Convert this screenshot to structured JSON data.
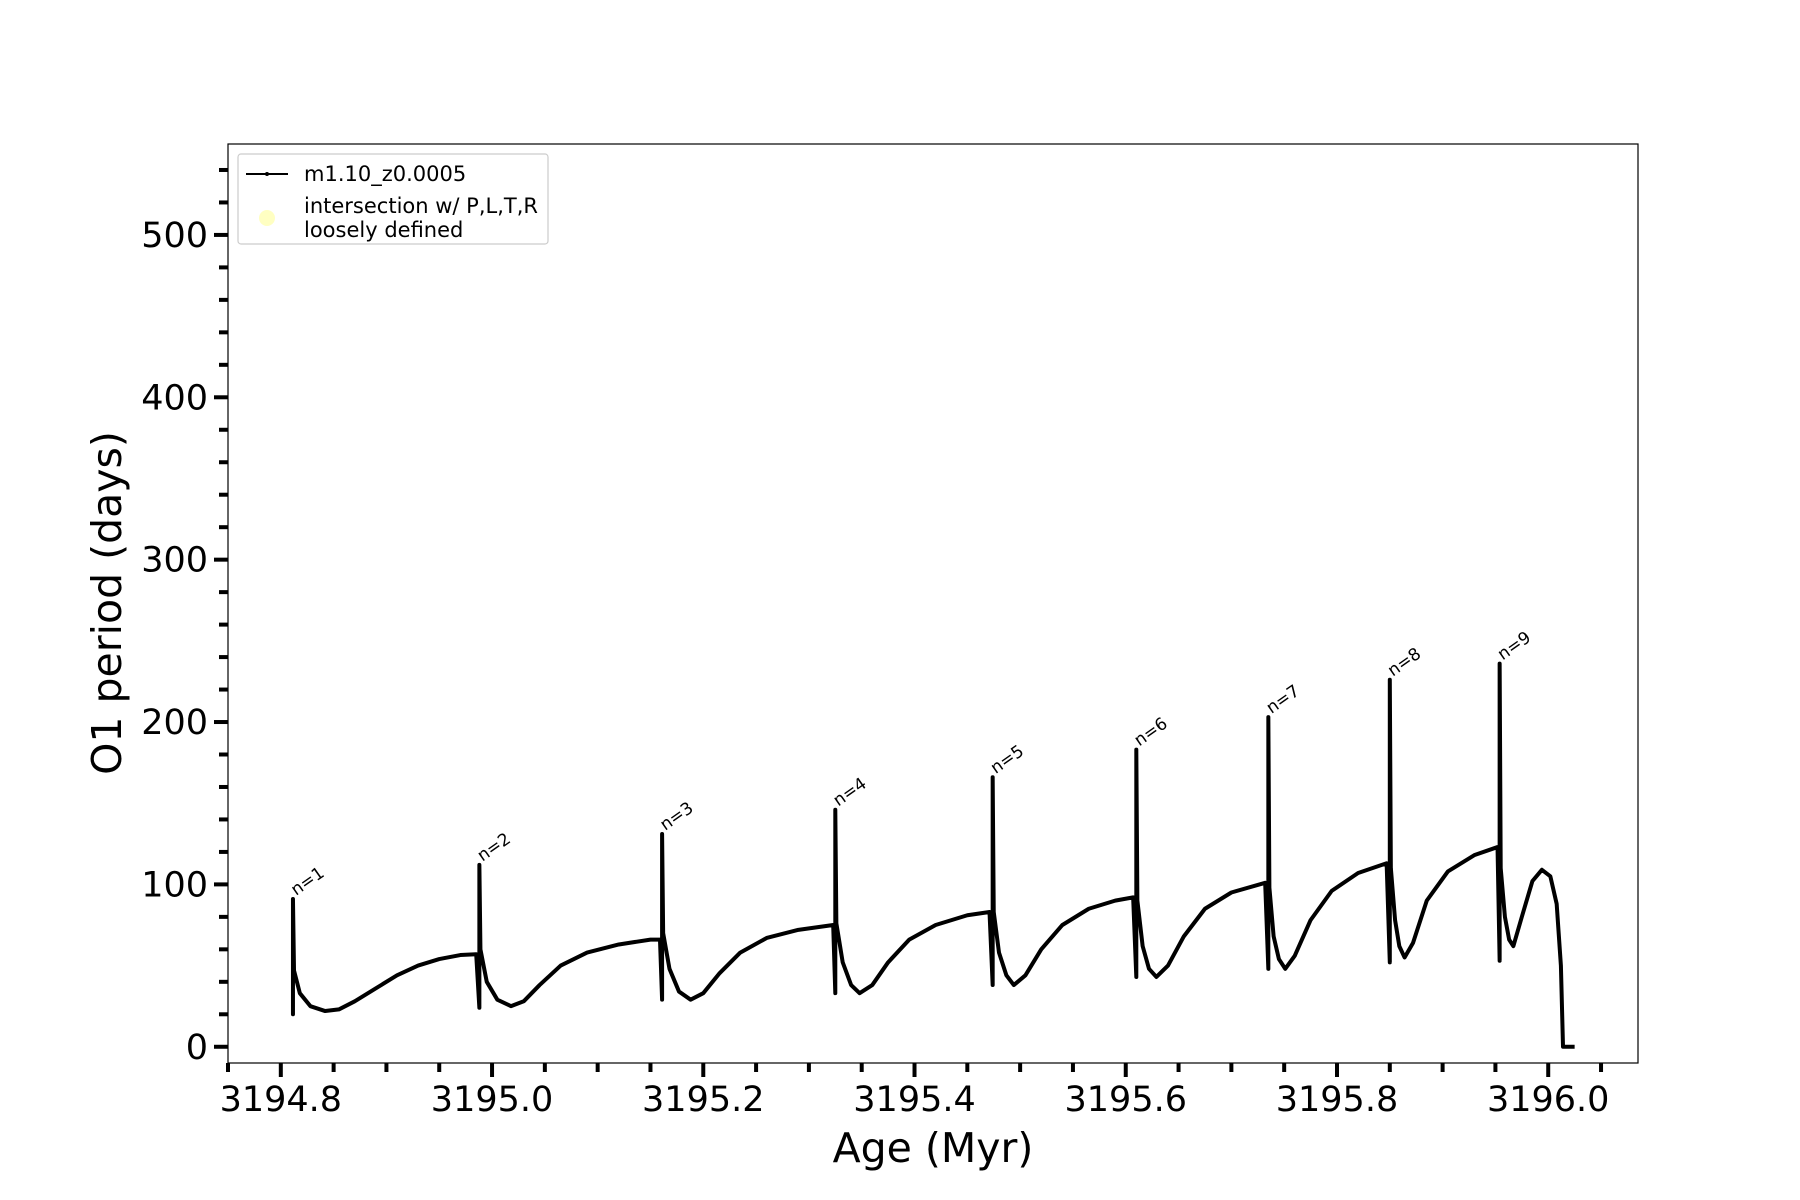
{
  "chart_data": {
    "type": "line",
    "xlabel": "Age (Myr)",
    "ylabel": "O1 period (days)",
    "xlim": [
      3194.75,
      3196.085
    ],
    "ylim": [
      -10,
      556
    ],
    "xticks": [
      3194.8,
      {
        "value": 3195.0,
        "label": "3195.0"
      },
      3195.2,
      3195.4,
      3195.6,
      3195.8,
      {
        "value": 3196.0,
        "label": "3196.0"
      }
    ],
    "xminorticks": [
      3194.75,
      3194.85,
      3194.9,
      3194.95,
      3195.05,
      3195.1,
      3195.15,
      3195.25,
      3195.3,
      3195.35,
      3195.45,
      3195.5,
      3195.55,
      3195.65,
      3195.7,
      3195.75,
      3195.85,
      3195.9,
      3195.95,
      3196.05
    ],
    "yticks": [
      0,
      100,
      200,
      300,
      400,
      500
    ],
    "yminorticks": [
      20,
      40,
      60,
      80,
      120,
      140,
      160,
      180,
      220,
      240,
      260,
      280,
      320,
      340,
      360,
      380,
      420,
      440,
      460,
      480,
      520,
      540
    ],
    "grid": false,
    "legend": "upper left",
    "series": [
      {
        "name": "m1.10_z0.0005",
        "color": "#000000",
        "x": [
          3194.8115,
          3194.8115,
          3194.8115,
          3194.8125,
          3194.818,
          3194.828,
          3194.842,
          3194.855,
          3194.87,
          3194.89,
          3194.91,
          3194.93,
          3194.95,
          3194.97,
          3194.985,
          3194.988,
          3194.988,
          3194.989,
          3194.995,
          3195.005,
          3195.018,
          3195.03,
          3195.045,
          3195.065,
          3195.09,
          3195.12,
          3195.15,
          3195.159,
          3195.161,
          3195.161,
          3195.162,
          3195.168,
          3195.177,
          3195.188,
          3195.2,
          3195.215,
          3195.235,
          3195.26,
          3195.29,
          3195.323,
          3195.325,
          3195.325,
          3195.326,
          3195.332,
          3195.34,
          3195.348,
          3195.36,
          3195.375,
          3195.395,
          3195.42,
          3195.45,
          3195.471,
          3195.474,
          3195.474,
          3195.475,
          3195.48,
          3195.487,
          3195.494,
          3195.505,
          3195.52,
          3195.54,
          3195.565,
          3195.59,
          3195.607,
          3195.61,
          3195.61,
          3195.611,
          3195.616,
          3195.622,
          3195.629,
          3195.64,
          3195.655,
          3195.675,
          3195.7,
          3195.732,
          3195.735,
          3195.735,
          3195.736,
          3195.74,
          3195.745,
          3195.751,
          3195.76,
          3195.775,
          3195.795,
          3195.82,
          3195.847,
          3195.85,
          3195.85,
          3195.851,
          3195.855,
          3195.859,
          3195.864,
          3195.872,
          3195.885,
          3195.905,
          3195.93,
          3195.952,
          3195.954,
          3195.954,
          3195.955,
          3195.959,
          3195.963,
          3195.967,
          3195.975,
          3195.985,
          3195.994,
          3196.002,
          3196.008,
          3196.012,
          3196.014,
          3196.025
        ],
        "values": [
          47,
          20,
          91,
          47,
          33,
          25,
          22,
          23,
          28,
          36,
          44,
          50,
          54,
          56.5,
          57,
          24,
          112,
          60,
          40,
          29,
          25,
          28,
          38,
          50,
          58,
          63,
          66,
          66,
          29,
          131,
          70,
          48,
          34,
          29,
          33,
          45,
          58,
          67,
          72,
          75,
          33,
          146,
          76,
          52,
          38,
          33,
          38,
          52,
          66,
          75,
          81,
          83,
          38,
          166,
          83,
          58,
          44,
          38,
          44,
          60,
          75,
          85,
          90,
          92,
          43,
          183,
          90,
          62,
          48,
          43,
          50,
          68,
          85,
          95,
          101,
          48,
          203,
          98,
          68,
          54,
          48,
          56,
          78,
          96,
          107,
          113,
          52,
          226,
          110,
          78,
          62,
          55,
          64,
          90,
          108,
          118,
          123,
          53,
          236,
          110,
          80,
          66,
          62,
          80,
          102,
          109,
          105,
          88,
          50,
          0,
          0
        ]
      },
      {
        "name": "intersection w/ P,L,T,R\nloosely defined",
        "color": "#ffffb3",
        "marker": "circle"
      }
    ],
    "annotations": [
      {
        "text": "n=1",
        "x": 3194.8115,
        "y": 91
      },
      {
        "text": "n=2",
        "x": 3194.988,
        "y": 112
      },
      {
        "text": "n=3",
        "x": 3195.161,
        "y": 131
      },
      {
        "text": "n=4",
        "x": 3195.325,
        "y": 146
      },
      {
        "text": "n=5",
        "x": 3195.474,
        "y": 166
      },
      {
        "text": "n=6",
        "x": 3195.61,
        "y": 183
      },
      {
        "text": "n=7",
        "x": 3195.735,
        "y": 203
      },
      {
        "text": "n=8",
        "x": 3195.85,
        "y": 226
      },
      {
        "text": "n=9",
        "x": 3195.954,
        "y": 236
      }
    ]
  }
}
